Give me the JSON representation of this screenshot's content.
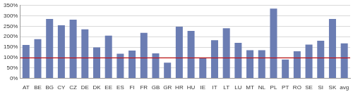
{
  "chart_data": {
    "type": "bar",
    "categories": [
      "AT",
      "BE",
      "BG",
      "CY",
      "CZ",
      "DE",
      "DK",
      "EE",
      "ES",
      "FI",
      "FR",
      "GB",
      "GR",
      "HR",
      "HU",
      "IE",
      "IT",
      "LT",
      "LU",
      "MT",
      "NL",
      "PL",
      "PT",
      "RO",
      "SE",
      "SI",
      "SK",
      "avg"
    ],
    "values": [
      160,
      188,
      285,
      255,
      282,
      235,
      148,
      205,
      118,
      133,
      218,
      120,
      75,
      248,
      228,
      97,
      183,
      240,
      170,
      135,
      135,
      335,
      90,
      130,
      162,
      180,
      285,
      168
    ],
    "color": "#6b7db3",
    "ylim": [
      0,
      350
    ],
    "yticks": [
      {
        "value": 0,
        "label": "0%"
      },
      {
        "value": 50,
        "label": "50%"
      },
      {
        "value": 100,
        "label": "100%"
      },
      {
        "value": 150,
        "label": "150%"
      },
      {
        "value": 200,
        "label": "200%"
      },
      {
        "value": 250,
        "label": "250%"
      },
      {
        "value": 300,
        "label": "300%"
      },
      {
        "value": 350,
        "label": "350%"
      }
    ],
    "grid": true,
    "reference_line": {
      "value": 100,
      "color": "#cc0000"
    }
  }
}
